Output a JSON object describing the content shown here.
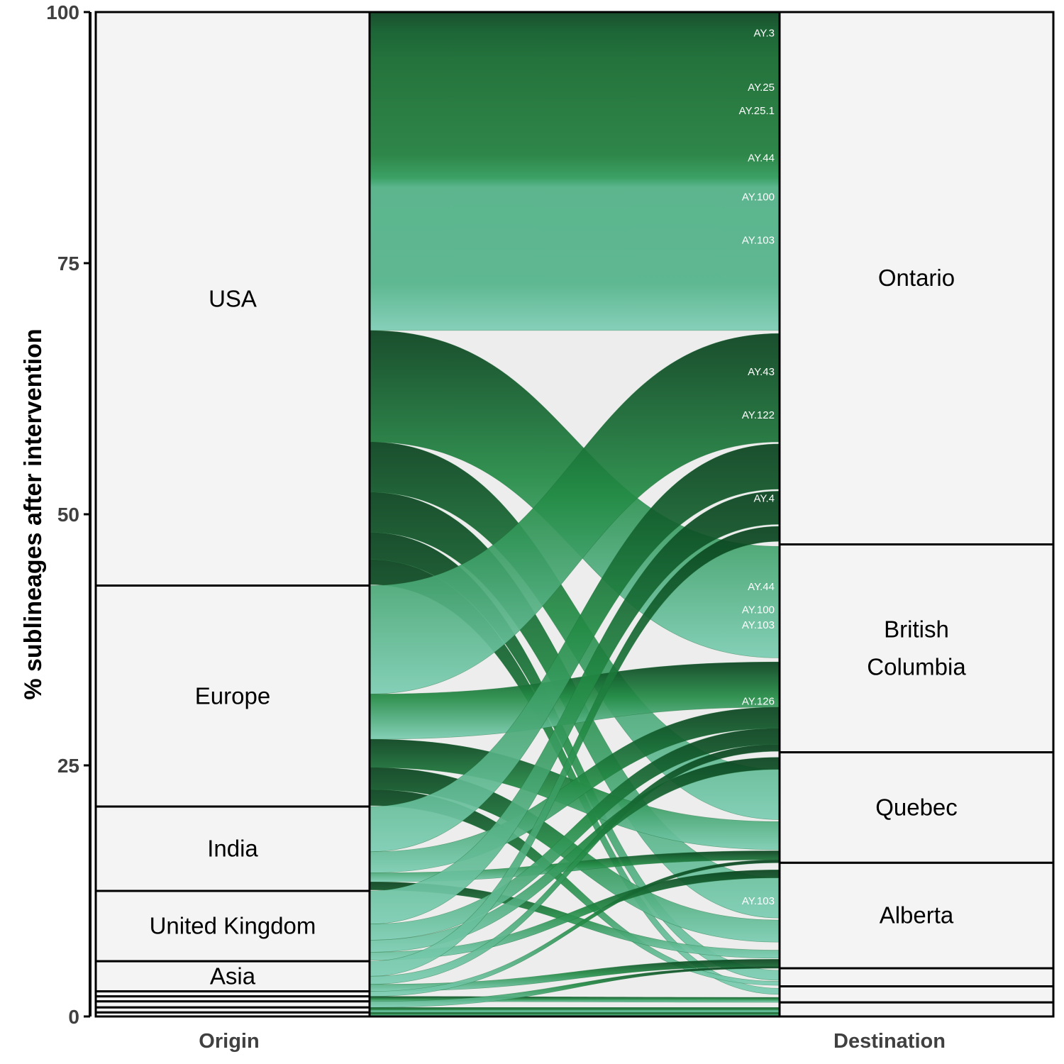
{
  "chart_data": {
    "type": "alluvial",
    "ylabel": "% sublineages after intervention",
    "ylim": [
      0,
      100
    ],
    "yticks": [
      0,
      25,
      50,
      75,
      100
    ],
    "axes": [
      "Origin",
      "Destination"
    ],
    "origin_strata": [
      {
        "label": "USA",
        "from": 42.9,
        "to": 100
      },
      {
        "label": "Europe",
        "from": 20.9,
        "to": 42.9
      },
      {
        "label": "India",
        "from": 12.5,
        "to": 20.9
      },
      {
        "label": "United Kingdom",
        "from": 5.5,
        "to": 12.5
      },
      {
        "label": "Asia",
        "from": 2.5,
        "to": 5.5
      },
      {
        "label": "",
        "from": 2.0,
        "to": 2.5
      },
      {
        "label": "",
        "from": 1.5,
        "to": 2.0
      },
      {
        "label": "",
        "from": 0.9,
        "to": 1.5
      },
      {
        "label": "",
        "from": 0.4,
        "to": 0.9
      },
      {
        "label": "",
        "from": 0,
        "to": 0.4
      }
    ],
    "destination_strata": [
      {
        "label": "Ontario",
        "from": 47.0,
        "to": 100
      },
      {
        "label": "British Columbia",
        "from": 26.3,
        "to": 47.0
      },
      {
        "label": "Quebec",
        "from": 15.3,
        "to": 26.3
      },
      {
        "label": "Alberta",
        "from": 4.8,
        "to": 15.3
      },
      {
        "label": "",
        "from": 3.0,
        "to": 4.8
      },
      {
        "label": "",
        "from": 1.4,
        "to": 3.0
      },
      {
        "label": "",
        "from": 0,
        "to": 1.4
      }
    ],
    "flows": [
      {
        "lineage": "AY.3",
        "origin": "USA",
        "destination": "Ontario",
        "o0": 68.3,
        "o1": 100,
        "d0": 68.3,
        "d1": 100
      },
      {
        "lineage": "",
        "origin": "USA",
        "destination": "British Columbia",
        "o0": 57.2,
        "o1": 68.3,
        "d0": 35.7,
        "d1": 46.8
      },
      {
        "lineage": "",
        "origin": "USA",
        "destination": "Quebec",
        "o0": 52.2,
        "o1": 57.2,
        "d0": 19.6,
        "d1": 24.6
      },
      {
        "lineage": "",
        "origin": "USA",
        "destination": "Alberta",
        "o0": 48.2,
        "o1": 52.2,
        "d0": 9.8,
        "d1": 13.8
      },
      {
        "lineage": "",
        "origin": "USA",
        "destination": "",
        "o0": 45.5,
        "o1": 48.2,
        "d0": 3.6,
        "d1": 4.6
      },
      {
        "lineage": "",
        "origin": "USA",
        "destination": "",
        "o0": 43.0,
        "o1": 45.5,
        "d0": 2.2,
        "d1": 2.8
      },
      {
        "lineage": "",
        "origin": "Europe",
        "destination": "Ontario",
        "o0": 32.1,
        "o1": 42.9,
        "d0": 57.2,
        "d1": 68.0
      },
      {
        "lineage": "",
        "origin": "Europe",
        "destination": "British Columbia",
        "o0": 27.6,
        "o1": 32.1,
        "d0": 30.8,
        "d1": 35.3
      },
      {
        "lineage": "",
        "origin": "Europe",
        "destination": "Quebec",
        "o0": 24.8,
        "o1": 27.6,
        "d0": 16.6,
        "d1": 19.4
      },
      {
        "lineage": "",
        "origin": "Europe",
        "destination": "Alberta",
        "o0": 22.6,
        "o1": 24.8,
        "d0": 7.4,
        "d1": 9.6
      },
      {
        "lineage": "",
        "origin": "Europe",
        "destination": "",
        "o0": 21.0,
        "o1": 22.6,
        "d0": 3.1,
        "d1": 3.5
      },
      {
        "lineage": "",
        "origin": "India",
        "destination": "Ontario",
        "o0": 16.4,
        "o1": 20.9,
        "d0": 52.5,
        "d1": 57.0
      },
      {
        "lineage": "",
        "origin": "India",
        "destination": "British Columbia",
        "o0": 14.3,
        "o1": 16.4,
        "d0": 28.7,
        "d1": 30.8
      },
      {
        "lineage": "",
        "origin": "India",
        "destination": "Quebec",
        "o0": 13.4,
        "o1": 14.3,
        "d0": 15.6,
        "d1": 16.5
      },
      {
        "lineage": "",
        "origin": "India",
        "destination": "Alberta",
        "o0": 12.6,
        "o1": 13.4,
        "d0": 5.8,
        "d1": 6.6
      },
      {
        "lineage": "",
        "origin": "United Kingdom",
        "destination": "Ontario",
        "o0": 9.2,
        "o1": 12.5,
        "d0": 49.0,
        "d1": 52.3
      },
      {
        "lineage": "",
        "origin": "United Kingdom",
        "destination": "British Columbia",
        "o0": 7.6,
        "o1": 9.2,
        "d0": 27.1,
        "d1": 28.7
      },
      {
        "lineage": "",
        "origin": "United Kingdom",
        "destination": "Quebec",
        "o0": 6.4,
        "o1": 7.6,
        "d0": 24.6,
        "d1": 25.8
      },
      {
        "lineage": "",
        "origin": "United Kingdom",
        "destination": "Alberta",
        "o0": 5.6,
        "o1": 6.4,
        "d0": 13.8,
        "d1": 14.6
      },
      {
        "lineage": "",
        "origin": "Asia",
        "destination": "Ontario",
        "o0": 4.0,
        "o1": 5.5,
        "d0": 47.3,
        "d1": 48.8
      },
      {
        "lineage": "",
        "origin": "Asia",
        "destination": "British Columbia",
        "o0": 3.2,
        "o1": 4.0,
        "d0": 26.4,
        "d1": 27.1
      },
      {
        "lineage": "",
        "origin": "Asia",
        "destination": "Alberta",
        "o0": 2.5,
        "o1": 3.2,
        "d0": 5.0,
        "d1": 5.7
      },
      {
        "lineage": "",
        "origin": "",
        "destination": "Quebec",
        "o0": 2.0,
        "o1": 2.5,
        "d0": 15.3,
        "d1": 15.6
      },
      {
        "lineage": "",
        "origin": "",
        "destination": "",
        "o0": 1.5,
        "o1": 2.0,
        "d0": 1.4,
        "d1": 1.9
      },
      {
        "lineage": "",
        "origin": "",
        "destination": "Alberta",
        "o0": 0.9,
        "o1": 1.5,
        "d0": 4.8,
        "d1": 5.0
      },
      {
        "lineage": "",
        "origin": "",
        "destination": "",
        "o0": 0.4,
        "o1": 0.9,
        "d0": 0.4,
        "d1": 0.9
      },
      {
        "lineage": "",
        "origin": "",
        "destination": "",
        "o0": 0,
        "o1": 0.4,
        "d0": 0,
        "d1": 0.4
      }
    ],
    "lineage_labels": [
      {
        "text": "AY.3",
        "y": 97.9
      },
      {
        "text": "AY.25",
        "y": 92.5
      },
      {
        "text": "AY.25.1",
        "y": 90.2
      },
      {
        "text": "AY.44",
        "y": 85.5
      },
      {
        "text": "AY.100",
        "y": 81.6
      },
      {
        "text": "AY.103",
        "y": 77.3
      },
      {
        "text": "AY.43",
        "y": 64.2
      },
      {
        "text": "AY.122",
        "y": 59.9
      },
      {
        "text": "AY.4",
        "y": 51.6
      },
      {
        "text": "AY.44",
        "y": 42.8
      },
      {
        "text": "AY.100",
        "y": 40.5
      },
      {
        "text": "AY.103",
        "y": 39.0
      },
      {
        "text": "AY.126",
        "y": 31.4
      },
      {
        "text": "AY.103",
        "y": 11.5
      }
    ],
    "colors": {
      "stratum_fill": "#f4f4f4",
      "flow_area_bg": "#ededed",
      "flow_dark": "#08411d",
      "flow_mid": "#238b45",
      "flow_light": "#7bcdb3"
    }
  }
}
